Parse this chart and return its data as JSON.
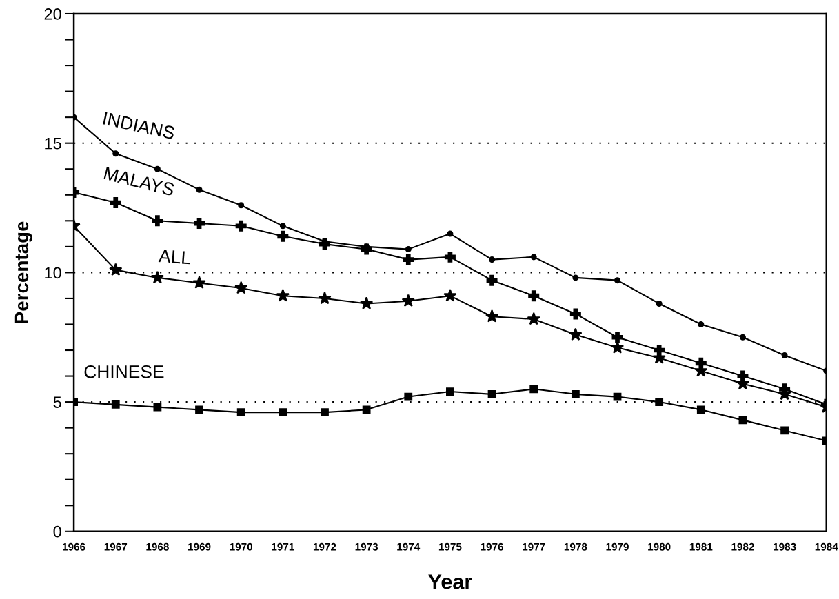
{
  "chart_data": {
    "type": "line",
    "xlabel": "Year",
    "ylabel": "Percentage",
    "categories": [
      "1966",
      "1967",
      "1968",
      "1969",
      "1970",
      "1971",
      "1972",
      "1973",
      "1974",
      "1975",
      "1976",
      "1977",
      "1978",
      "1979",
      "1980",
      "1981",
      "1982",
      "1983",
      "1984"
    ],
    "series": [
      {
        "name": "INDIANS",
        "color": "#000000",
        "marker": "circle",
        "values": [
          16.0,
          14.6,
          14.0,
          13.2,
          12.6,
          11.8,
          11.2,
          11.0,
          10.9,
          11.5,
          10.5,
          10.6,
          9.8,
          9.7,
          8.8,
          8.0,
          7.5,
          6.8,
          6.2
        ]
      },
      {
        "name": "MALAYS",
        "color": "#000000",
        "marker": "cross",
        "values": [
          13.1,
          12.7,
          12.0,
          11.9,
          11.8,
          11.4,
          11.1,
          10.9,
          10.5,
          10.6,
          9.7,
          9.1,
          8.4,
          7.5,
          7.0,
          6.5,
          6.0,
          5.5,
          4.9
        ]
      },
      {
        "name": "ALL",
        "color": "#000000",
        "marker": "star",
        "values": [
          11.8,
          10.1,
          9.8,
          9.6,
          9.4,
          9.1,
          9.0,
          8.8,
          8.9,
          9.1,
          8.3,
          8.2,
          7.6,
          7.1,
          6.7,
          6.2,
          5.7,
          5.3,
          4.8
        ]
      },
      {
        "name": "CHINESE",
        "color": "#000000",
        "marker": "square",
        "values": [
          5.0,
          4.9,
          4.8,
          4.7,
          4.6,
          4.6,
          4.6,
          4.7,
          5.2,
          5.4,
          5.3,
          5.5,
          5.3,
          5.2,
          5.0,
          4.7,
          4.3,
          3.9,
          3.5
        ]
      }
    ],
    "ylim": [
      0,
      20
    ],
    "yticks": [
      0,
      {
        "value": 1,
        "label": null
      },
      {
        "value": 2,
        "label": null
      },
      {
        "value": 3,
        "label": null
      },
      {
        "value": 4,
        "label": null
      },
      5,
      {
        "value": 6,
        "label": null
      },
      {
        "value": 7,
        "label": null
      },
      {
        "value": 8,
        "label": null
      },
      {
        "value": 9,
        "label": null
      },
      10,
      {
        "value": 11,
        "label": null
      },
      {
        "value": 12,
        "label": null
      },
      {
        "value": 13,
        "label": null
      },
      {
        "value": 14,
        "label": null
      },
      15,
      {
        "value": 16,
        "label": null
      },
      {
        "value": 17,
        "label": null
      },
      {
        "value": 18,
        "label": null
      },
      {
        "value": 19,
        "label": null
      },
      20
    ],
    "ref_lines": [
      {
        "axis": "y",
        "value": 5,
        "line_style": "dotted",
        "color": "#000000"
      },
      {
        "axis": "y",
        "value": 10,
        "line_style": "dotted",
        "color": "#000000"
      },
      {
        "axis": "y",
        "value": 15,
        "line_style": "dotted",
        "color": "#000000"
      }
    ],
    "line_style": "solid",
    "grid": false
  }
}
